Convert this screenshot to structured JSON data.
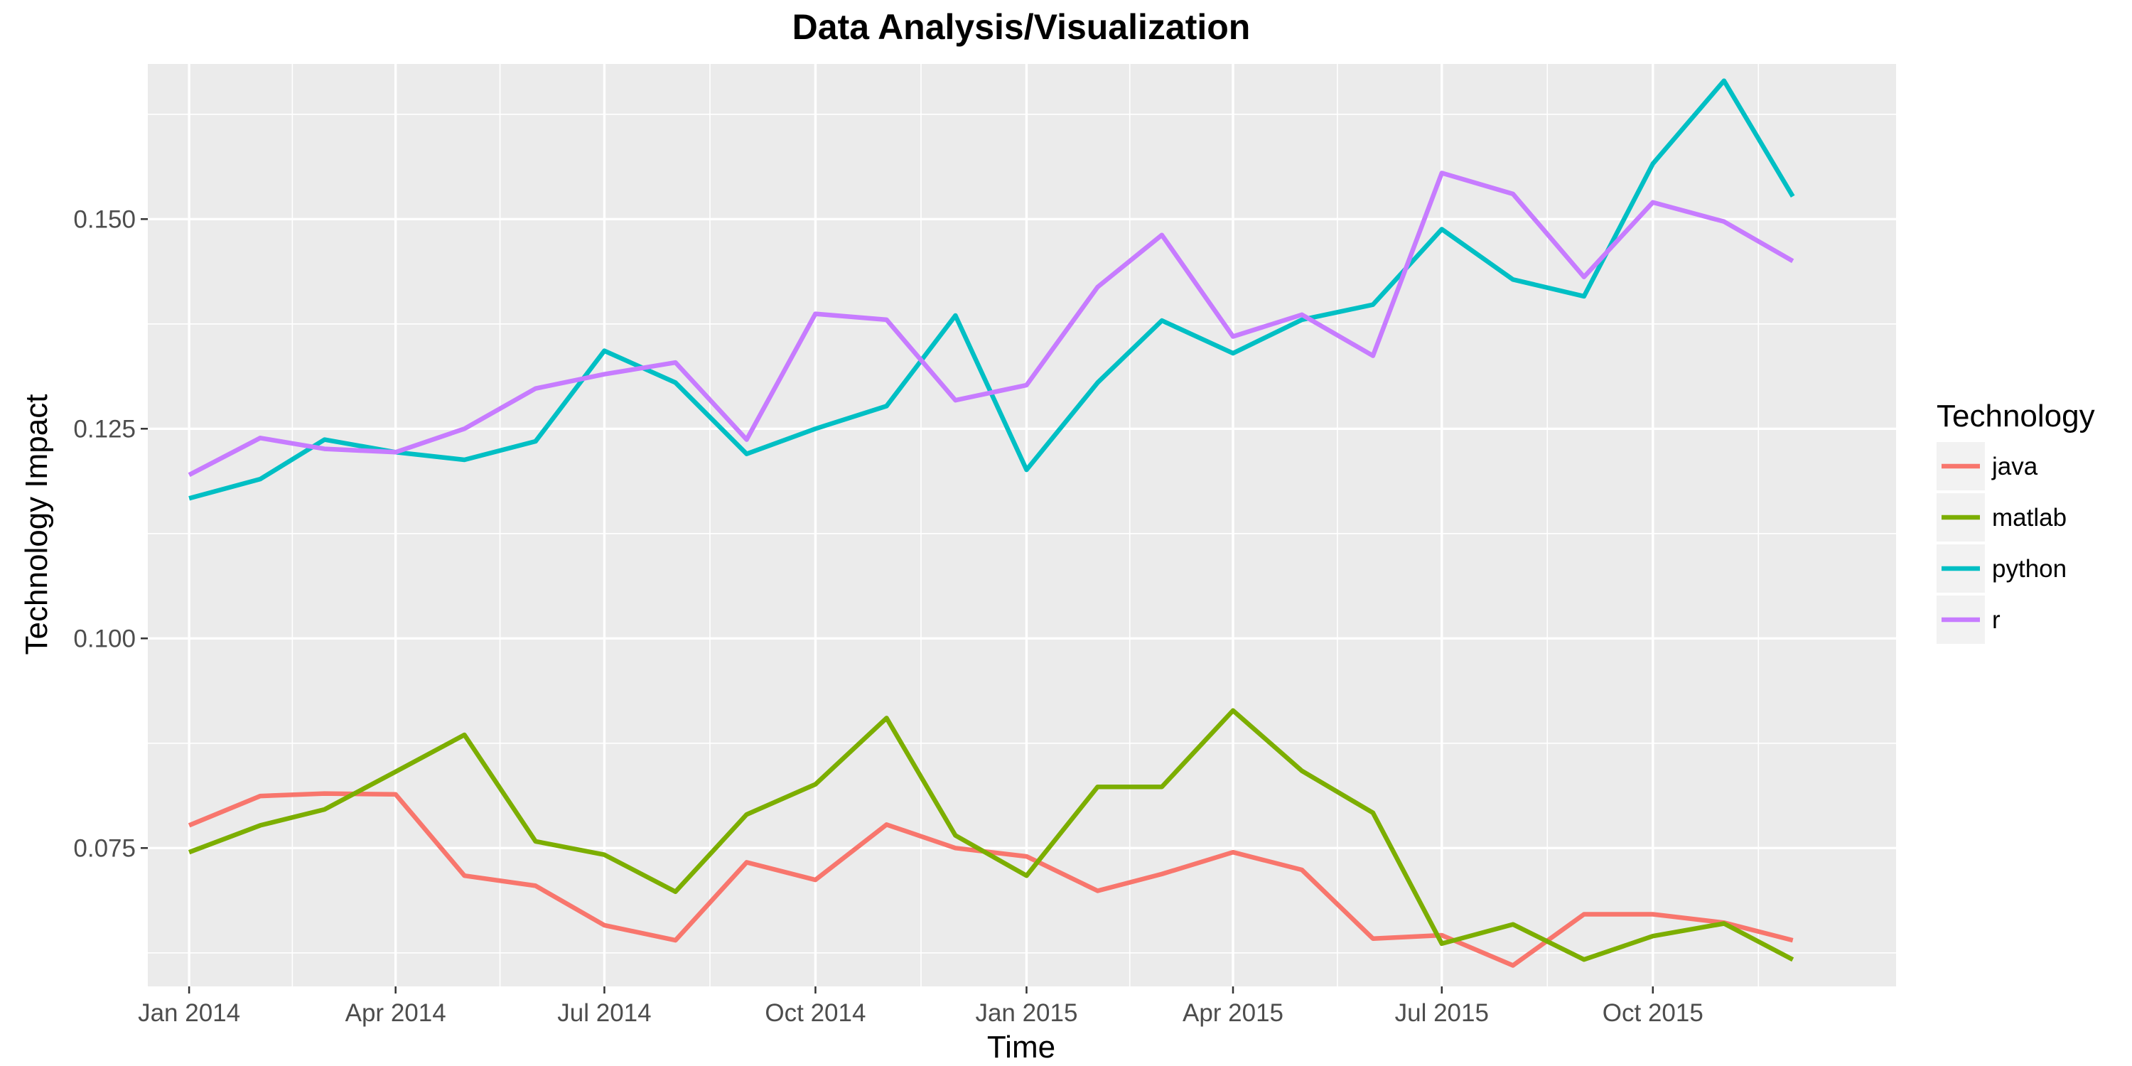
{
  "chart_data": {
    "type": "line",
    "title": "Data Analysis/Visualization",
    "xlabel": "Time",
    "ylabel": "Technology Impact",
    "grid": true,
    "legend_title": "Technology",
    "legend_position": "right",
    "x": [
      "2014-01",
      "2014-02",
      "2014-03",
      "2014-04",
      "2014-05",
      "2014-06",
      "2014-07",
      "2014-08",
      "2014-09",
      "2014-10",
      "2014-11",
      "2014-12",
      "2015-01",
      "2015-02",
      "2015-03",
      "2015-04",
      "2015-05",
      "2015-06",
      "2015-07",
      "2015-08",
      "2015-09",
      "2015-10",
      "2015-11",
      "2015-12"
    ],
    "x_ticks": [
      "2014-01",
      "2014-04",
      "2014-07",
      "2014-10",
      "2015-01",
      "2015-04",
      "2015-07",
      "2015-10"
    ],
    "x_tick_labels": [
      "Jan 2014",
      "Apr 2014",
      "Jul 2014",
      "Oct 2014",
      "Jan 2015",
      "Apr 2015",
      "Jul 2015",
      "Oct 2015"
    ],
    "xlim": [
      "2013-12-14",
      "2016-01-15"
    ],
    "y_ticks": [
      0.075,
      0.1,
      0.125,
      0.15
    ],
    "y_tick_labels": [
      "0.075",
      "0.100",
      "0.125",
      "0.150"
    ],
    "ylim": [
      0.0585,
      0.1685
    ],
    "series": [
      {
        "name": "java",
        "color": "#F8766D",
        "values": [
          0.0777,
          0.0812,
          0.0815,
          0.0814,
          0.0717,
          0.0705,
          0.0658,
          0.064,
          0.0733,
          0.0712,
          0.0778,
          0.075,
          0.074,
          0.0699,
          0.0719,
          0.0745,
          0.0724,
          0.0642,
          0.0646,
          0.061,
          0.0671,
          0.0671,
          0.0661,
          0.064
        ]
      },
      {
        "name": "matlab",
        "color": "#7CAE00",
        "values": [
          0.0745,
          0.0777,
          0.0796,
          0.0841,
          0.0885,
          0.0758,
          0.0742,
          0.0698,
          0.079,
          0.0826,
          0.0905,
          0.0765,
          0.0717,
          0.0823,
          0.0823,
          0.0914,
          0.0842,
          0.0792,
          0.0636,
          0.0659,
          0.0617,
          0.0645,
          0.066,
          0.0617
        ]
      },
      {
        "name": "python",
        "color": "#00BFC4",
        "values": [
          0.1167,
          0.119,
          0.1237,
          0.1222,
          0.1213,
          0.1235,
          0.1343,
          0.1305,
          0.122,
          0.125,
          0.1277,
          0.1385,
          0.1201,
          0.1305,
          0.1379,
          0.134,
          0.138,
          0.1398,
          0.1488,
          0.1428,
          0.1408,
          0.1566,
          0.1665,
          0.1527
        ]
      },
      {
        "name": "r",
        "color": "#C77CFF",
        "values": [
          0.1195,
          0.1239,
          0.1226,
          0.1222,
          0.125,
          0.1298,
          0.1315,
          0.1329,
          0.1237,
          0.1387,
          0.138,
          0.1284,
          0.1302,
          0.1419,
          0.1481,
          0.136,
          0.1386,
          0.1337,
          0.1555,
          0.153,
          0.1431,
          0.152,
          0.1497,
          0.145
        ]
      }
    ]
  }
}
